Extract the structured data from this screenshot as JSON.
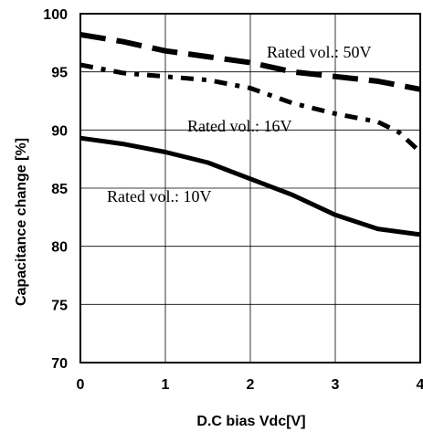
{
  "chart_data": {
    "type": "line",
    "xlabel": "D.C bias  Vdc[V]",
    "ylabel": "Capacitance change  [%]",
    "xlim": [
      0,
      4
    ],
    "ylim": [
      70,
      100
    ],
    "xticks": [
      0,
      1,
      2,
      3,
      4
    ],
    "yticks": [
      70,
      75,
      80,
      85,
      90,
      95,
      100
    ],
    "grid": true,
    "series": [
      {
        "name": "Rated vol.: 50V",
        "style": "long-dash",
        "x": [
          0,
          0.5,
          1.0,
          1.5,
          2.0,
          2.5,
          3.0,
          3.5,
          4.0
        ],
        "y": [
          98.2,
          97.6,
          96.8,
          96.3,
          95.8,
          95.0,
          94.6,
          94.2,
          93.5
        ]
      },
      {
        "name": "Rated vol.: 16V",
        "style": "dash-dot",
        "x": [
          0,
          0.5,
          1.0,
          1.5,
          2.0,
          2.5,
          3.0,
          3.5,
          3.75,
          4.0
        ],
        "y": [
          95.6,
          94.9,
          94.6,
          94.3,
          93.6,
          92.3,
          91.4,
          90.7,
          89.8,
          88.1
        ]
      },
      {
        "name": "Rated vol.: 10V",
        "style": "solid",
        "x": [
          0,
          0.5,
          1.0,
          1.5,
          2.0,
          2.5,
          3.0,
          3.5,
          4.0
        ],
        "y": [
          89.3,
          88.8,
          88.1,
          87.2,
          85.8,
          84.4,
          82.7,
          81.5,
          81.0
        ]
      }
    ]
  }
}
